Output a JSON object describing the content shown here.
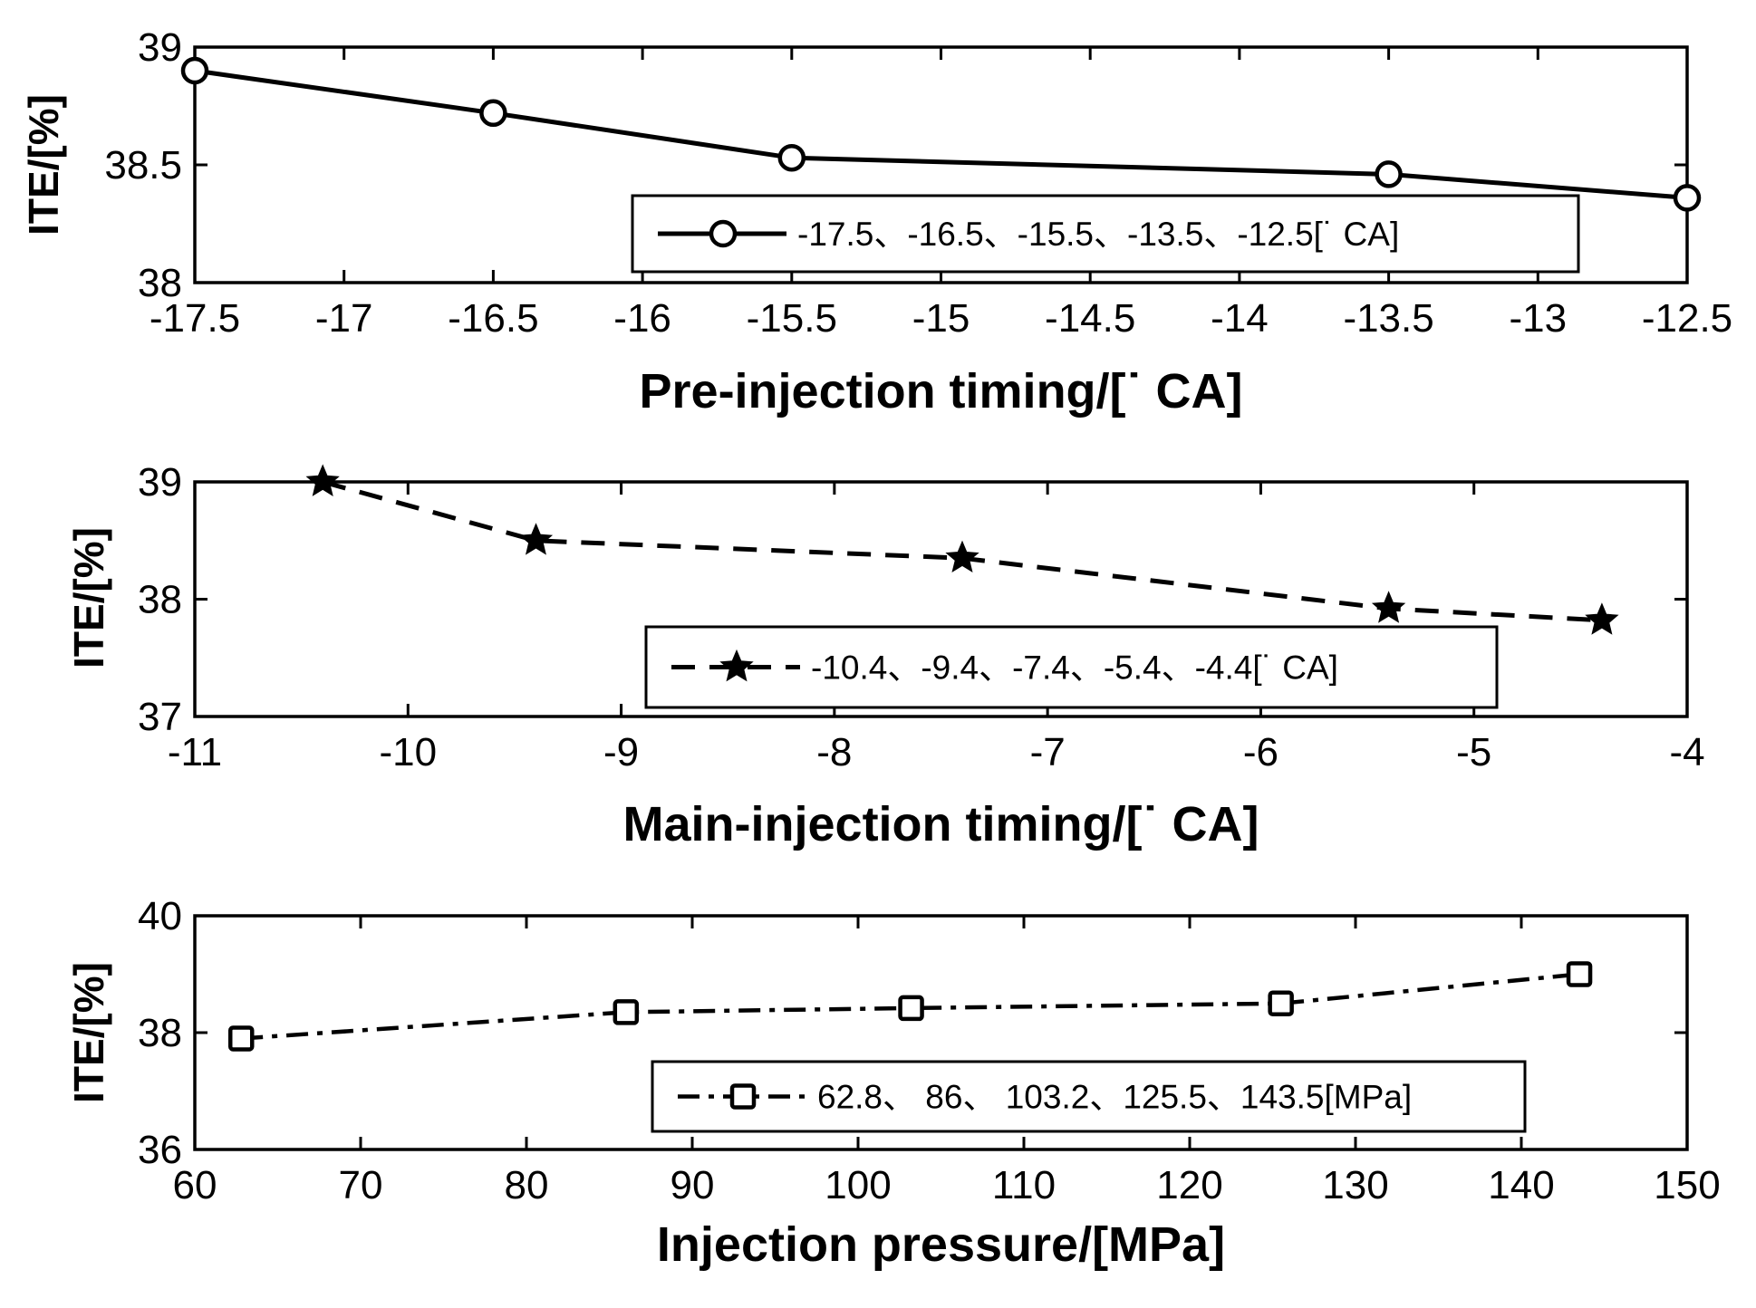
{
  "chart_data": [
    {
      "type": "line",
      "xlabel": "Pre-injection timing/[˙ CA]",
      "ylabel": "ITE/[%]",
      "xlim": [
        -17.5,
        -12.5
      ],
      "ylim": [
        38,
        39
      ],
      "xticks": [
        -17.5,
        -17,
        -16.5,
        -16,
        -15.5,
        -15,
        -14.5,
        -14,
        -13.5,
        -13,
        -12.5
      ],
      "xtick_labels": [
        "-17.5",
        "-17",
        "-16.5",
        "-16",
        "-15.5",
        "-15",
        "-14.5",
        "-14",
        "-13.5",
        "-13",
        "-12.5"
      ],
      "yticks": [
        38,
        38.5,
        39
      ],
      "ytick_labels": [
        "38",
        "38.5",
        "39"
      ],
      "series": [
        {
          "name": "-17.5、-16.5、-15.5、-13.5、-12.5[˙ CA]",
          "line_style": "solid",
          "marker": "circle",
          "x": [
            -17.5,
            -16.5,
            -15.5,
            -13.5,
            -12.5
          ],
          "y": [
            38.9,
            38.72,
            38.53,
            38.46,
            38.36
          ]
        }
      ],
      "legend_position": "lower-right"
    },
    {
      "type": "line",
      "xlabel": "Main-injection timing/[˙ CA]",
      "ylabel": "ITE/[%]",
      "xlim": [
        -11,
        -4
      ],
      "ylim": [
        37,
        39
      ],
      "xticks": [
        -11,
        -10,
        -9,
        -8,
        -7,
        -6,
        -5,
        -4
      ],
      "xtick_labels": [
        "-11",
        "-10",
        "-9",
        "-8",
        "-7",
        "-6",
        "-5",
        "-4"
      ],
      "yticks": [
        37,
        38,
        39
      ],
      "ytick_labels": [
        "37",
        "38",
        "39"
      ],
      "series": [
        {
          "name": "-10.4、-9.4、-7.4、-5.4、-4.4[˙ CA]",
          "line_style": "dashed",
          "marker": "star",
          "x": [
            -10.4,
            -9.4,
            -7.4,
            -5.4,
            -4.4
          ],
          "y": [
            39.0,
            38.5,
            38.35,
            37.92,
            37.82
          ]
        }
      ],
      "legend_position": "lower-right"
    },
    {
      "type": "line",
      "xlabel": "Injection pressure/[MPa]",
      "ylabel": "ITE/[%]",
      "xlim": [
        60,
        150
      ],
      "ylim": [
        36,
        40
      ],
      "xticks": [
        60,
        70,
        80,
        90,
        100,
        110,
        120,
        130,
        140,
        150
      ],
      "xtick_labels": [
        "60",
        "70",
        "80",
        "90",
        "100",
        "110",
        "120",
        "130",
        "140",
        "150"
      ],
      "yticks": [
        36,
        38,
        40
      ],
      "ytick_labels": [
        "36",
        "38",
        "40"
      ],
      "series": [
        {
          "name": "62.8、 86、 103.2、125.5、143.5[MPa]",
          "line_style": "dash-dot",
          "marker": "square",
          "x": [
            62.8,
            86,
            103.2,
            125.5,
            143.5
          ],
          "y": [
            37.9,
            38.35,
            38.42,
            38.5,
            39.0
          ]
        }
      ],
      "legend_position": "lower-right"
    }
  ]
}
